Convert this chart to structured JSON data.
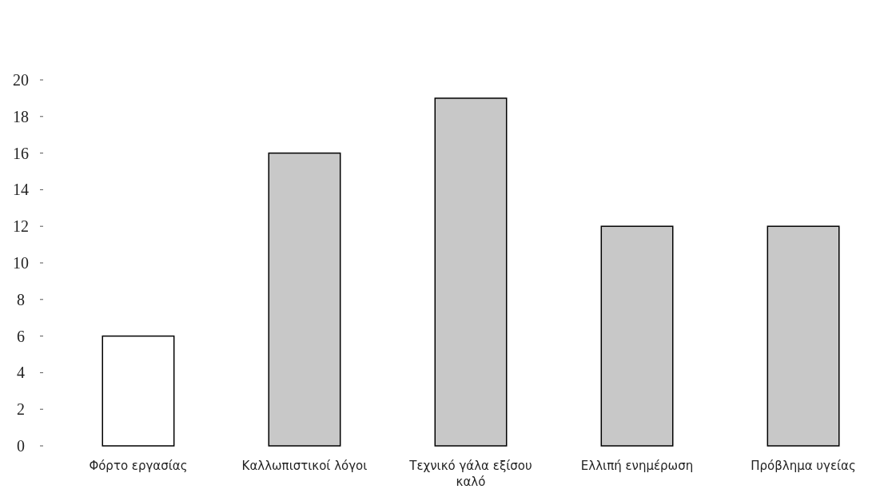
{
  "chart_data": {
    "type": "bar",
    "categories": [
      "Φόρτο εργασίας",
      "Καλλωπιστικοί λόγοι",
      "Τεχνικό γάλα εξίσου καλό",
      "Ελλιπή ενημέρωση",
      "Πρόβλημα υγείας"
    ],
    "values": [
      6,
      16,
      19,
      12,
      12
    ],
    "colors": [
      "#ffffff",
      "#c8c8c8",
      "#c8c8c8",
      "#c8c8c8",
      "#c8c8c8"
    ],
    "ylim": [
      0,
      20
    ],
    "yticks": [
      0,
      2,
      4,
      6,
      8,
      10,
      12,
      14,
      16,
      18,
      20
    ],
    "grid": false
  }
}
